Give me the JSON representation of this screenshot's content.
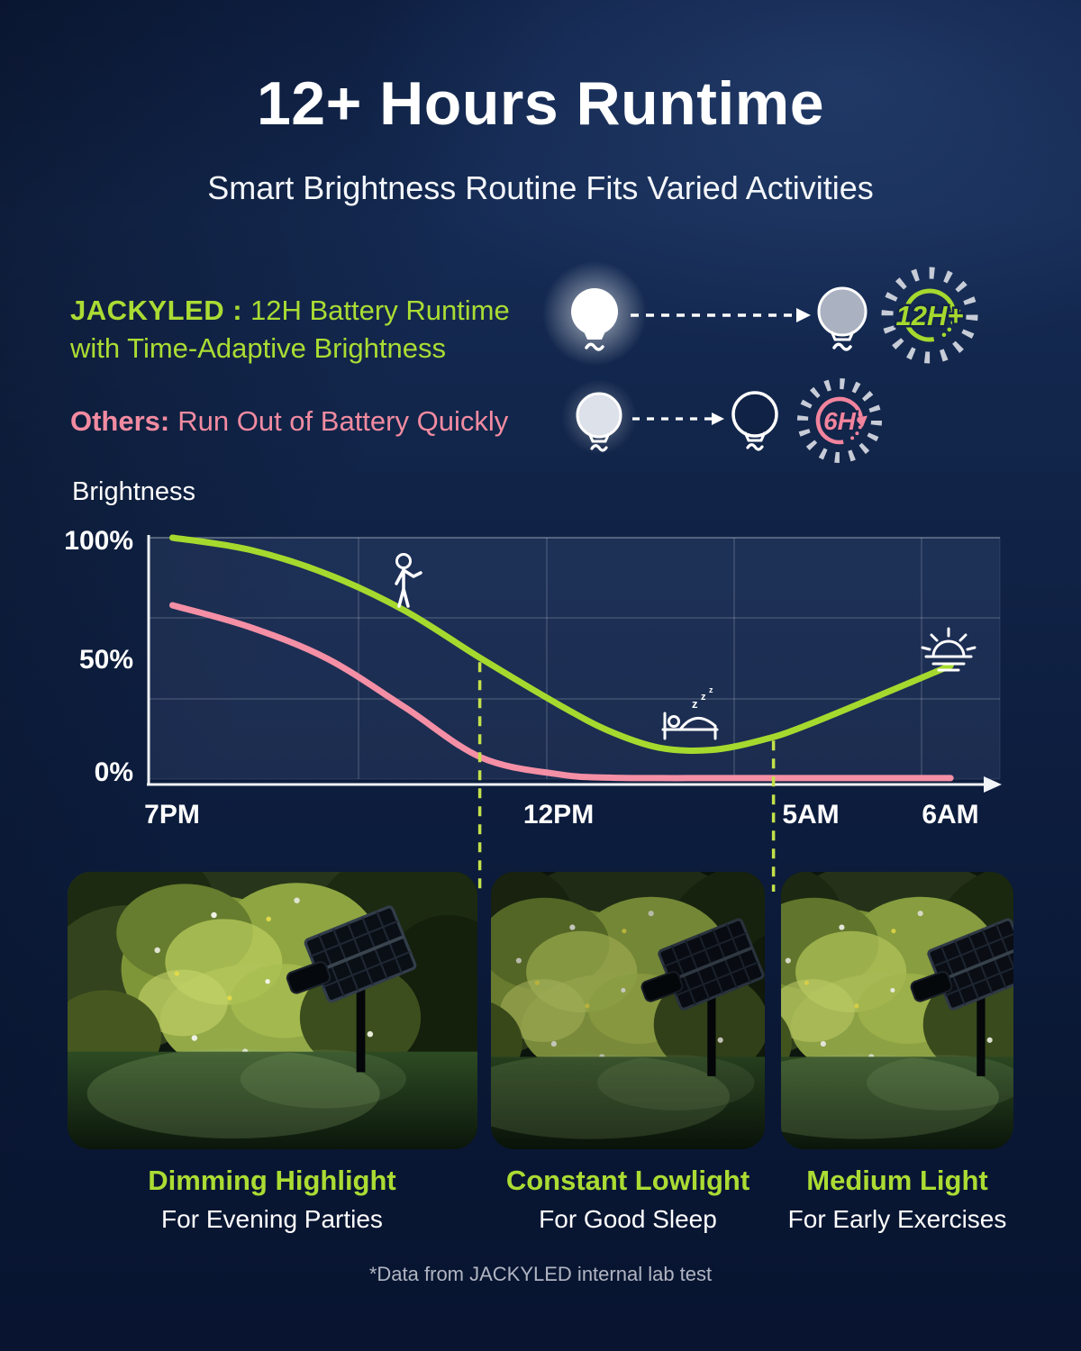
{
  "page": {
    "title": "12+ Hours Runtime",
    "subtitle": "Smart Brightness Routine Fits Varied Activities",
    "footnote": "*Data from JACKYLED internal lab test"
  },
  "comparison": {
    "brand": {
      "name_label": "JACKYLED :",
      "line1": "12H Battery Runtime",
      "line2": "with Time-Adaptive Brightness",
      "badge": "12H+",
      "color": "#abdc33"
    },
    "others": {
      "name_label": "Others:",
      "line1": "Run Out of Battery Quickly",
      "badge": "6H",
      "color": "#f28ba1"
    }
  },
  "chart_data": {
    "type": "line",
    "title": "Brightness",
    "ylabel": "Brightness",
    "xlabel": "",
    "y_ticks": [
      "100%",
      "50%",
      "0%"
    ],
    "x_ticks_shown": [
      "7PM",
      "12PM",
      "5AM",
      "6AM"
    ],
    "x_hours": [
      "7PM",
      "8PM",
      "9PM",
      "10PM",
      "11PM",
      "12PM",
      "1AM",
      "2AM",
      "3AM",
      "4AM",
      "5AM",
      "6AM"
    ],
    "ylim": [
      0,
      100
    ],
    "grid": true,
    "legend": "none",
    "series": [
      {
        "name": "JACKYLED",
        "color": "#a6d92e",
        "values": [
          100,
          95,
          85,
          70,
          50,
          31,
          20,
          13,
          12,
          16,
          23,
          47
        ]
      },
      {
        "name": "Others",
        "color": "#f48fa5",
        "values": [
          72,
          63,
          50,
          30,
          9,
          2,
          0.6,
          0.4,
          0.4,
          0.4,
          0.4,
          0.4
        ]
      }
    ],
    "axis_anchor_fracs": {
      "7PM": 0.028,
      "12PM": 0.481,
      "5AM": 0.778,
      "6AM": 0.942
    },
    "anchor_indices": [
      0,
      5,
      10,
      11
    ],
    "marker_lines": [
      {
        "frac": 0.389
      },
      {
        "frac": 0.734
      }
    ],
    "annotations": [
      {
        "icon": "walking-person",
        "time": "10PM"
      },
      {
        "icon": "sleeping-bed",
        "time": "2AM",
        "zs": [
          "z",
          "z",
          "z"
        ]
      },
      {
        "icon": "sunrise",
        "time": "6AM"
      }
    ]
  },
  "photos": [
    {
      "title": "Dimming Highlight",
      "subtitle": "For Evening Parties"
    },
    {
      "title": "Constant Lowlight",
      "subtitle": "For Good Sleep"
    },
    {
      "title": "Medium Light",
      "subtitle": "For Early Exercises"
    }
  ]
}
